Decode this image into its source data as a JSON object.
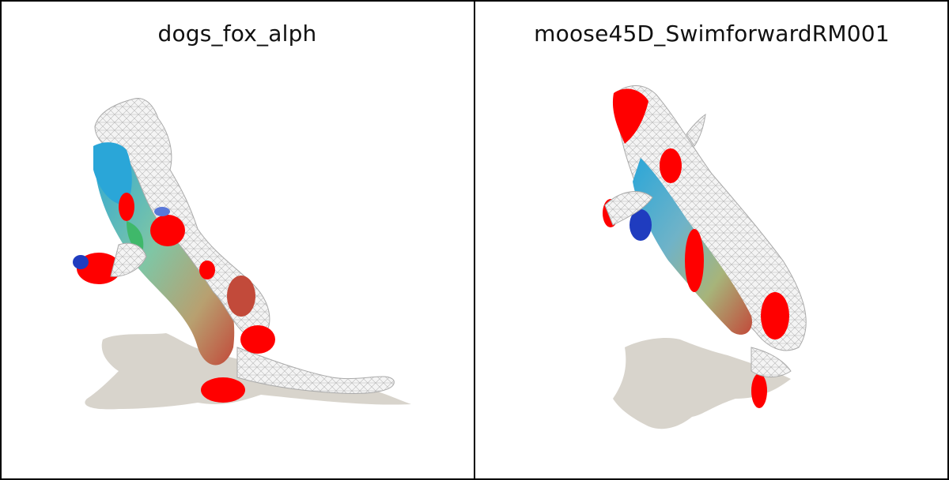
{
  "panels": [
    {
      "title": "dogs_fox_alph"
    },
    {
      "title": "moose45D_SwimforwardRM001"
    }
  ],
  "colors": {
    "background": "#ffffff",
    "border": "#000000",
    "shadow": "#d8d4cc",
    "wireframe": "#c8c8c8",
    "highlight": "#ff0000",
    "blue": "#1f3cbf",
    "cyan": "#2aa6d8",
    "green": "#3fb86a"
  }
}
